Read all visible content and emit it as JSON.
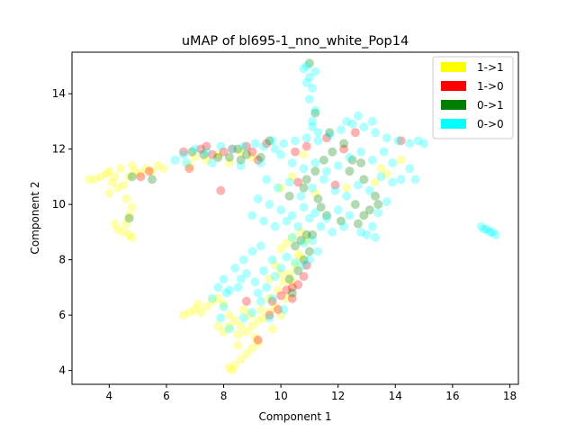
{
  "chart_data": {
    "type": "scatter",
    "title": "uMAP of bl695-1_nno_white_Pop14",
    "xlabel": "Component 1",
    "ylabel": "Component 2",
    "xlim": [
      2.7,
      18.3
    ],
    "ylim": [
      3.5,
      15.5
    ],
    "xticks": [
      "4",
      "6",
      "8",
      "10",
      "12",
      "14",
      "16",
      "18"
    ],
    "yticks": [
      "4",
      "6",
      "8",
      "10",
      "12",
      "14"
    ],
    "grid": false,
    "legend_position": "top-right",
    "series": [
      {
        "name": "1->1",
        "color": "#ffff00",
        "points": [
          [
            3.3,
            10.9
          ],
          [
            3.5,
            10.9
          ],
          [
            3.7,
            11.0
          ],
          [
            3.9,
            11.1
          ],
          [
            4.0,
            11.2
          ],
          [
            4.2,
            11.0
          ],
          [
            4.1,
            10.8
          ],
          [
            4.3,
            10.6
          ],
          [
            4.0,
            10.4
          ],
          [
            4.5,
            10.7
          ],
          [
            4.7,
            11.0
          ],
          [
            4.9,
            11.2
          ],
          [
            5.1,
            11.1
          ],
          [
            5.3,
            11.3
          ],
          [
            5.5,
            11.2
          ],
          [
            5.7,
            11.4
          ],
          [
            5.9,
            11.3
          ],
          [
            4.8,
            11.4
          ],
          [
            4.4,
            11.3
          ],
          [
            4.2,
            9.3
          ],
          [
            4.3,
            9.1
          ],
          [
            4.5,
            9.0
          ],
          [
            4.7,
            8.9
          ],
          [
            4.8,
            8.8
          ],
          [
            4.6,
            9.3
          ],
          [
            4.7,
            9.6
          ],
          [
            4.8,
            9.9
          ],
          [
            4.6,
            10.2
          ],
          [
            6.6,
            6.0
          ],
          [
            6.8,
            6.1
          ],
          [
            7.0,
            6.2
          ],
          [
            7.2,
            6.1
          ],
          [
            7.4,
            6.3
          ],
          [
            7.6,
            6.5
          ],
          [
            7.8,
            6.6
          ],
          [
            8.0,
            6.4
          ],
          [
            7.1,
            6.4
          ],
          [
            7.8,
            5.6
          ],
          [
            8.0,
            5.4
          ],
          [
            8.2,
            5.6
          ],
          [
            8.4,
            5.8
          ],
          [
            8.6,
            5.6
          ],
          [
            8.8,
            5.4
          ],
          [
            9.0,
            5.6
          ],
          [
            9.2,
            5.8
          ],
          [
            9.4,
            5.9
          ],
          [
            9.6,
            6.1
          ],
          [
            9.8,
            6.3
          ],
          [
            10.0,
            6.0
          ],
          [
            8.5,
            5.3
          ],
          [
            9.1,
            5.2
          ],
          [
            8.9,
            6.0
          ],
          [
            9.3,
            6.2
          ],
          [
            8.2,
            6.0
          ],
          [
            8.7,
            6.2
          ],
          [
            9.7,
            5.5
          ],
          [
            8.3,
            4.0
          ],
          [
            8.4,
            4.2
          ],
          [
            8.6,
            4.4
          ],
          [
            8.8,
            4.6
          ],
          [
            9.0,
            4.8
          ],
          [
            9.2,
            5.0
          ],
          [
            8.5,
            4.9
          ],
          [
            8.2,
            4.1
          ],
          [
            9.6,
            6.6
          ],
          [
            9.9,
            6.9
          ],
          [
            10.1,
            7.2
          ],
          [
            10.3,
            7.5
          ],
          [
            10.5,
            7.8
          ],
          [
            10.7,
            8.1
          ],
          [
            10.4,
            7.2
          ],
          [
            10.0,
            7.5
          ],
          [
            9.8,
            7.8
          ],
          [
            9.6,
            7.3
          ],
          [
            10.2,
            6.6
          ],
          [
            10.0,
            8.4
          ],
          [
            10.2,
            8.6
          ],
          [
            10.4,
            8.8
          ],
          [
            10.7,
            9.0
          ],
          [
            10.9,
            8.7
          ],
          [
            10.6,
            8.2
          ],
          [
            7.0,
            11.7
          ],
          [
            7.4,
            11.6
          ],
          [
            7.8,
            11.8
          ],
          [
            8.2,
            11.5
          ],
          [
            8.6,
            11.9
          ],
          [
            9.0,
            11.7
          ],
          [
            6.8,
            11.4
          ],
          [
            10.4,
            11.0
          ],
          [
            10.8,
            11.8
          ],
          [
            11.2,
            10.4
          ],
          [
            12.3,
            10.6
          ],
          [
            10.0,
            10.6
          ],
          [
            13.5,
            11.3
          ],
          [
            13.7,
            11.1
          ],
          [
            14.2,
            11.6
          ],
          [
            13.3,
            10.8
          ]
        ]
      },
      {
        "name": "1->0",
        "color": "#ff0000",
        "points": [
          [
            5.1,
            11.0
          ],
          [
            5.4,
            11.2
          ],
          [
            6.8,
            11.3
          ],
          [
            6.6,
            11.9
          ],
          [
            7.2,
            12.0
          ],
          [
            7.6,
            11.8
          ],
          [
            7.4,
            12.1
          ],
          [
            8.0,
            11.9
          ],
          [
            8.3,
            12.0
          ],
          [
            9.2,
            11.6
          ],
          [
            9.5,
            12.2
          ],
          [
            9.0,
            11.9
          ],
          [
            7.9,
            10.5
          ],
          [
            8.8,
            12.1
          ],
          [
            9.7,
            6.5
          ],
          [
            10.0,
            6.7
          ],
          [
            10.2,
            6.9
          ],
          [
            10.4,
            6.6
          ],
          [
            10.6,
            7.1
          ],
          [
            10.8,
            7.4
          ],
          [
            10.9,
            7.8
          ],
          [
            10.4,
            7.0
          ],
          [
            9.6,
            6.0
          ],
          [
            9.2,
            5.1
          ],
          [
            8.8,
            6.5
          ],
          [
            9.9,
            6.2
          ],
          [
            10.5,
            11.9
          ],
          [
            10.9,
            12.1
          ],
          [
            11.6,
            12.4
          ],
          [
            12.2,
            12.0
          ],
          [
            12.6,
            12.6
          ],
          [
            14.2,
            12.3
          ],
          [
            11.9,
            10.7
          ],
          [
            10.6,
            10.8
          ]
        ]
      },
      {
        "name": "0->1",
        "color": "#008000",
        "points": [
          [
            4.8,
            11.0
          ],
          [
            4.7,
            9.5
          ],
          [
            5.5,
            10.9
          ],
          [
            6.9,
            11.9
          ],
          [
            7.3,
            11.8
          ],
          [
            7.8,
            11.7
          ],
          [
            8.2,
            11.7
          ],
          [
            8.6,
            11.6
          ],
          [
            9.3,
            11.7
          ],
          [
            9.6,
            12.3
          ],
          [
            8.8,
            11.8
          ],
          [
            8.5,
            12.0
          ],
          [
            10.5,
            8.5
          ],
          [
            10.7,
            8.7
          ],
          [
            10.9,
            8.9
          ],
          [
            11.0,
            8.3
          ],
          [
            10.8,
            8.0
          ],
          [
            10.6,
            7.6
          ],
          [
            11.1,
            8.9
          ],
          [
            10.3,
            7.3
          ],
          [
            10.4,
            6.8
          ],
          [
            10.3,
            10.3
          ],
          [
            10.8,
            10.6
          ],
          [
            11.2,
            11.2
          ],
          [
            11.5,
            11.6
          ],
          [
            11.8,
            11.9
          ],
          [
            12.2,
            12.2
          ],
          [
            12.5,
            11.6
          ],
          [
            12.8,
            11.5
          ],
          [
            12.9,
            10.9
          ],
          [
            12.6,
            10.0
          ],
          [
            12.9,
            9.6
          ],
          [
            12.7,
            9.3
          ],
          [
            13.1,
            9.8
          ],
          [
            13.3,
            10.3
          ],
          [
            12.1,
            9.4
          ],
          [
            11.6,
            9.6
          ],
          [
            11.3,
            10.2
          ],
          [
            10.9,
            10.9
          ],
          [
            11.0,
            15.1
          ],
          [
            11.2,
            13.3
          ],
          [
            11.7,
            12.6
          ],
          [
            12.4,
            11.2
          ],
          [
            13.4,
            10.0
          ],
          [
            11.4,
            9.9
          ]
        ]
      },
      {
        "name": "0->0",
        "color": "#00ffff",
        "points": [
          [
            10.9,
            15.0
          ],
          [
            11.0,
            14.6
          ],
          [
            11.1,
            14.2
          ],
          [
            11.0,
            13.8
          ],
          [
            11.2,
            13.4
          ],
          [
            11.1,
            13.0
          ],
          [
            10.8,
            14.9
          ],
          [
            11.2,
            14.8
          ],
          [
            10.9,
            14.4
          ],
          [
            11.1,
            12.8
          ],
          [
            11.3,
            12.6
          ],
          [
            9.7,
            12.3
          ],
          [
            10.1,
            12.2
          ],
          [
            10.5,
            12.3
          ],
          [
            10.9,
            12.4
          ],
          [
            11.3,
            12.3
          ],
          [
            11.7,
            12.5
          ],
          [
            12.1,
            12.7
          ],
          [
            12.5,
            12.9
          ],
          [
            12.9,
            12.8
          ],
          [
            13.3,
            12.6
          ],
          [
            13.7,
            12.4
          ],
          [
            14.1,
            12.3
          ],
          [
            14.5,
            12.2
          ],
          [
            14.8,
            12.3
          ],
          [
            15.0,
            12.2
          ],
          [
            13.2,
            13.0
          ],
          [
            12.7,
            13.2
          ],
          [
            12.3,
            13.0
          ],
          [
            10.0,
            11.8
          ],
          [
            10.4,
            11.5
          ],
          [
            10.8,
            11.3
          ],
          [
            11.2,
            11.5
          ],
          [
            11.6,
            11.2
          ],
          [
            12.0,
            11.4
          ],
          [
            12.4,
            11.7
          ],
          [
            12.8,
            11.9
          ],
          [
            13.2,
            11.6
          ],
          [
            13.6,
            11.9
          ],
          [
            13.9,
            11.5
          ],
          [
            9.5,
            10.9
          ],
          [
            9.9,
            10.6
          ],
          [
            10.3,
            10.8
          ],
          [
            10.7,
            10.3
          ],
          [
            11.1,
            10.6
          ],
          [
            11.5,
            10.9
          ],
          [
            11.9,
            10.5
          ],
          [
            12.3,
            10.3
          ],
          [
            12.7,
            10.7
          ],
          [
            13.1,
            10.5
          ],
          [
            13.5,
            11.0
          ],
          [
            13.9,
            10.8
          ],
          [
            14.2,
            10.9
          ],
          [
            14.5,
            11.3
          ],
          [
            14.7,
            10.9
          ],
          [
            13.7,
            10.1
          ],
          [
            13.4,
            9.7
          ],
          [
            13.2,
            9.2
          ],
          [
            13.0,
            8.9
          ],
          [
            13.3,
            8.8
          ],
          [
            12.8,
            9.0
          ],
          [
            9.2,
            10.2
          ],
          [
            9.6,
            10.0
          ],
          [
            10.0,
            9.8
          ],
          [
            10.4,
            9.6
          ],
          [
            10.8,
            9.9
          ],
          [
            11.2,
            9.7
          ],
          [
            11.6,
            9.5
          ],
          [
            12.0,
            9.8
          ],
          [
            12.4,
            9.6
          ],
          [
            9.0,
            9.6
          ],
          [
            9.4,
            9.4
          ],
          [
            9.8,
            9.2
          ],
          [
            10.2,
            9.4
          ],
          [
            10.6,
            9.2
          ],
          [
            11.0,
            9.5
          ],
          [
            11.4,
            9.2
          ],
          [
            11.8,
            9.0
          ],
          [
            12.2,
            9.2
          ],
          [
            10.4,
            8.8
          ],
          [
            10.8,
            8.6
          ],
          [
            11.1,
            8.7
          ],
          [
            11.3,
            8.3
          ],
          [
            11.0,
            8.0
          ],
          [
            10.8,
            7.8
          ],
          [
            10.5,
            7.9
          ],
          [
            10.2,
            8.1
          ],
          [
            9.7,
            8.0
          ],
          [
            9.4,
            7.6
          ],
          [
            9.1,
            7.2
          ],
          [
            8.8,
            7.5
          ],
          [
            8.5,
            7.0
          ],
          [
            8.2,
            6.9
          ],
          [
            8.0,
            7.3
          ],
          [
            8.4,
            7.7
          ],
          [
            8.7,
            8.0
          ],
          [
            9.0,
            8.3
          ],
          [
            9.3,
            8.5
          ],
          [
            9.5,
            7.0
          ],
          [
            9.8,
            7.4
          ],
          [
            10.0,
            7.7
          ],
          [
            9.2,
            6.8
          ],
          [
            8.6,
            7.3
          ],
          [
            7.8,
            7.0
          ],
          [
            7.6,
            6.6
          ],
          [
            8.1,
            6.8
          ],
          [
            7.9,
            5.9
          ],
          [
            8.2,
            5.5
          ],
          [
            8.7,
            5.9
          ],
          [
            9.0,
            6.1
          ],
          [
            9.3,
            6.5
          ],
          [
            9.7,
            6.6
          ],
          [
            10.1,
            6.2
          ],
          [
            9.6,
            5.9
          ],
          [
            8.0,
            6.3
          ],
          [
            17.0,
            9.2
          ],
          [
            17.1,
            9.1
          ],
          [
            17.2,
            9.1
          ],
          [
            17.3,
            9.0
          ],
          [
            17.4,
            9.0
          ],
          [
            17.5,
            8.9
          ],
          [
            6.6,
            11.8
          ],
          [
            7.0,
            12.0
          ],
          [
            7.4,
            11.9
          ],
          [
            7.9,
            12.1
          ],
          [
            8.3,
            12.0
          ],
          [
            8.7,
            12.1
          ],
          [
            9.1,
            12.2
          ],
          [
            9.4,
            12.1
          ],
          [
            9.8,
            12.0
          ],
          [
            9.3,
            11.5
          ],
          [
            8.6,
            11.4
          ],
          [
            7.6,
            11.5
          ],
          [
            6.3,
            11.6
          ],
          [
            6.7,
            11.5
          ]
        ]
      }
    ]
  }
}
